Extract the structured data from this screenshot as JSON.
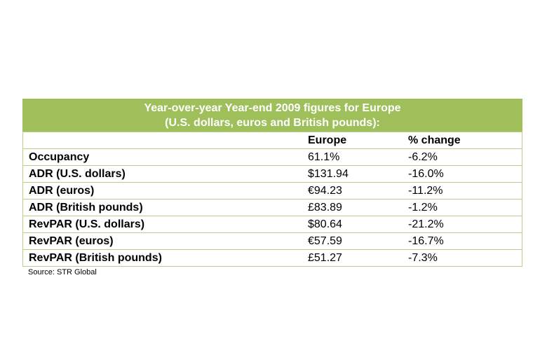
{
  "table": {
    "title": [
      "Year-over-year Year-end 2009 figures for Europe",
      "(U.S. dollars, euros and British pounds):"
    ],
    "header": [
      "Europe",
      "% change"
    ],
    "rows": [
      [
        "Occupancy",
        "61.1%",
        "-6.2%"
      ],
      [
        "ADR (U.S. dollars)",
        "$131.94",
        "-16.0%"
      ],
      [
        "ADR (euros)",
        "€94.23",
        "-11.2%"
      ],
      [
        "ADR (British pounds)",
        "£83.89",
        "-1.2%"
      ],
      [
        "RevPAR (U.S. dollars)",
        "$80.64",
        "-21.2%"
      ],
      [
        "RevPAR (euros)",
        "€57.59",
        "-16.7%"
      ],
      [
        "RevPAR (British pounds)",
        "£51.27",
        "-7.3%"
      ]
    ],
    "source": "Source: STR Global"
  }
}
